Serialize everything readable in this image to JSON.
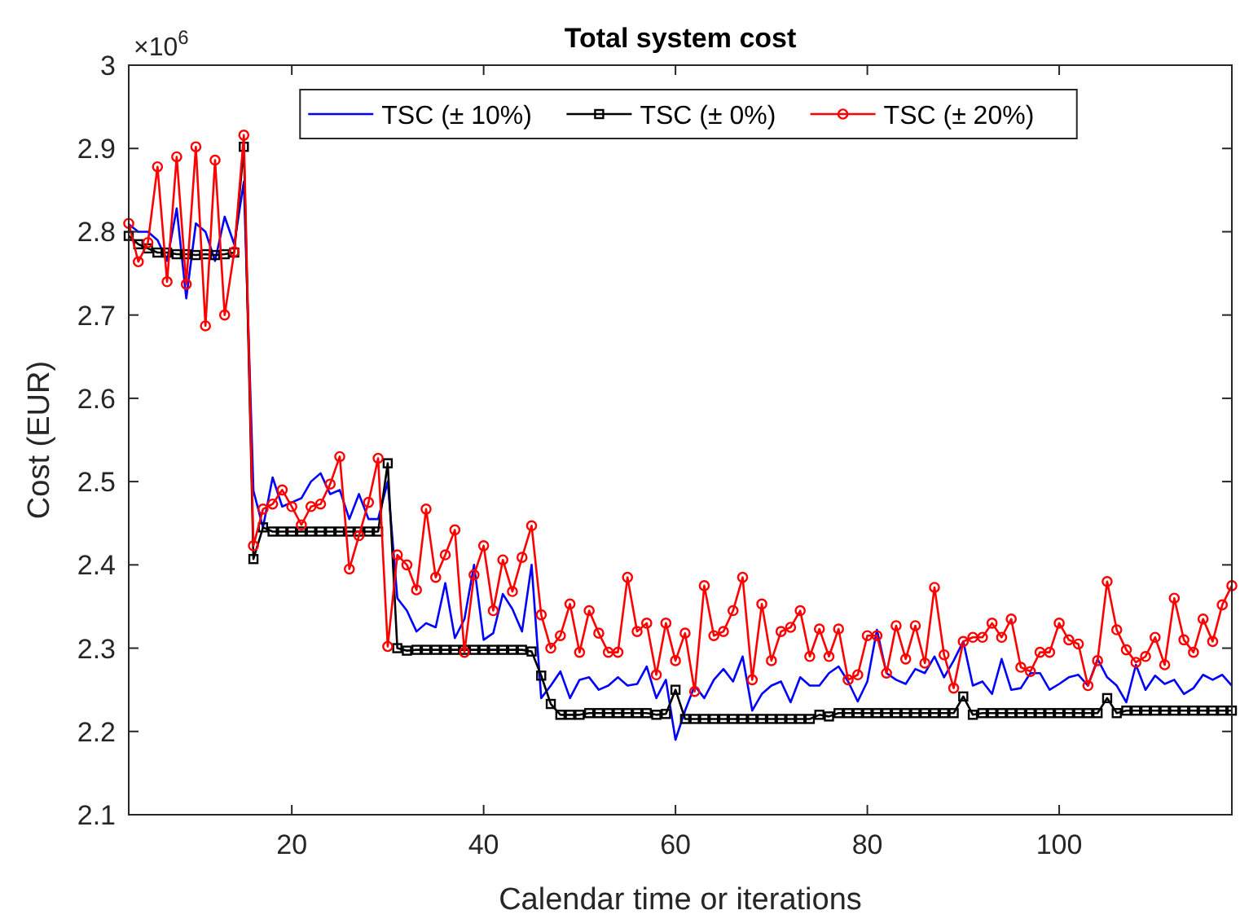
{
  "chart_data": {
    "type": "line",
    "title": "Total system cost",
    "xlabel": "Calendar time or iterations",
    "ylabel": "Cost (EUR)",
    "annotations": [
      "×10$^{6}$"
    ],
    "xlim": [
      3,
      118
    ],
    "xticks": [
      20,
      40,
      60,
      80,
      100
    ],
    "ylim": [
      2.1,
      3
    ],
    "yticks": [
      2.1,
      2.2,
      2.3,
      2.4,
      2.5,
      2.6,
      2.7,
      2.8,
      2.9,
      3
    ],
    "grid": false,
    "legend": "top",
    "x": [
      3,
      4,
      5,
      6,
      7,
      8,
      9,
      10,
      11,
      12,
      13,
      14,
      15,
      16,
      17,
      18,
      19,
      20,
      21,
      22,
      23,
      24,
      25,
      26,
      27,
      28,
      29,
      30,
      31,
      32,
      33,
      34,
      35,
      36,
      37,
      38,
      39,
      40,
      41,
      42,
      43,
      44,
      45,
      46,
      47,
      48,
      49,
      50,
      51,
      52,
      53,
      54,
      55,
      56,
      57,
      58,
      59,
      60,
      61,
      62,
      63,
      64,
      65,
      66,
      67,
      68,
      69,
      70,
      71,
      72,
      73,
      74,
      75,
      76,
      77,
      78,
      79,
      80,
      81,
      82,
      83,
      84,
      85,
      86,
      87,
      88,
      89,
      90,
      91,
      92,
      93,
      94,
      95,
      96,
      97,
      98,
      99,
      100,
      101,
      102,
      103,
      104,
      105,
      106,
      107,
      108,
      109,
      110,
      111,
      112,
      113,
      114,
      115,
      116,
      117,
      118
    ],
    "series": [
      {
        "name": "TSC (± 10%)",
        "color": "#0000ff",
        "marker": "none",
        "values": [
          2.809,
          2.8,
          2.8,
          2.79,
          2.765,
          2.828,
          2.72,
          2.81,
          2.8,
          2.765,
          2.818,
          2.785,
          2.86,
          2.489,
          2.445,
          2.505,
          2.47,
          2.475,
          2.48,
          2.5,
          2.51,
          2.485,
          2.49,
          2.455,
          2.485,
          2.455,
          2.455,
          2.5,
          2.36,
          2.345,
          2.32,
          2.33,
          2.325,
          2.378,
          2.312,
          2.335,
          2.4,
          2.31,
          2.318,
          2.365,
          2.347,
          2.32,
          2.4,
          2.24,
          2.255,
          2.272,
          2.24,
          2.262,
          2.265,
          2.25,
          2.255,
          2.265,
          2.255,
          2.257,
          2.278,
          2.24,
          2.262,
          2.19,
          2.225,
          2.255,
          2.24,
          2.262,
          2.275,
          2.26,
          2.29,
          2.225,
          2.245,
          2.255,
          2.26,
          2.235,
          2.265,
          2.255,
          2.255,
          2.27,
          2.278,
          2.26,
          2.236,
          2.26,
          2.322,
          2.27,
          2.262,
          2.257,
          2.275,
          2.27,
          2.29,
          2.265,
          2.285,
          2.308,
          2.255,
          2.26,
          2.245,
          2.287,
          2.25,
          2.252,
          2.27,
          2.27,
          2.25,
          2.257,
          2.265,
          2.268,
          2.255,
          2.287,
          2.265,
          2.255,
          2.235,
          2.28,
          2.25,
          2.267,
          2.257,
          2.262,
          2.245,
          2.252,
          2.268,
          2.262,
          2.268,
          2.255
        ]
      },
      {
        "name": "TSC (± 0%)",
        "color": "#000000",
        "marker": "square",
        "values": [
          2.795,
          2.785,
          2.78,
          2.775,
          2.775,
          2.773,
          2.773,
          2.772,
          2.773,
          2.772,
          2.773,
          2.775,
          2.902,
          2.407,
          2.445,
          2.44,
          2.44,
          2.44,
          2.44,
          2.44,
          2.44,
          2.44,
          2.44,
          2.44,
          2.44,
          2.44,
          2.44,
          2.522,
          2.3,
          2.297,
          2.298,
          2.298,
          2.298,
          2.298,
          2.298,
          2.298,
          2.298,
          2.298,
          2.298,
          2.298,
          2.298,
          2.298,
          2.296,
          2.267,
          2.233,
          2.22,
          2.22,
          2.22,
          2.222,
          2.222,
          2.222,
          2.222,
          2.222,
          2.222,
          2.222,
          2.22,
          2.221,
          2.25,
          2.215,
          2.215,
          2.215,
          2.215,
          2.215,
          2.215,
          2.215,
          2.215,
          2.215,
          2.215,
          2.215,
          2.215,
          2.215,
          2.215,
          2.22,
          2.218,
          2.222,
          2.222,
          2.222,
          2.222,
          2.222,
          2.222,
          2.222,
          2.222,
          2.222,
          2.222,
          2.222,
          2.222,
          2.222,
          2.242,
          2.22,
          2.222,
          2.222,
          2.222,
          2.222,
          2.222,
          2.222,
          2.222,
          2.222,
          2.222,
          2.222,
          2.222,
          2.222,
          2.222,
          2.24,
          2.222,
          2.225,
          2.225,
          2.225,
          2.225,
          2.225,
          2.225,
          2.225,
          2.225,
          2.225,
          2.225,
          2.225,
          2.225
        ]
      },
      {
        "name": "TSC (± 20%)",
        "color": "#ff0000",
        "marker": "circle",
        "values": [
          2.81,
          2.764,
          2.787,
          2.878,
          2.74,
          2.89,
          2.737,
          2.902,
          2.687,
          2.886,
          2.7,
          2.776,
          2.916,
          2.423,
          2.467,
          2.473,
          2.49,
          2.47,
          2.448,
          2.47,
          2.473,
          2.497,
          2.53,
          2.395,
          2.435,
          2.475,
          2.528,
          2.302,
          2.412,
          2.4,
          2.37,
          2.467,
          2.385,
          2.412,
          2.442,
          2.295,
          2.388,
          2.423,
          2.345,
          2.406,
          2.368,
          2.409,
          2.447,
          2.34,
          2.3,
          2.315,
          2.353,
          2.295,
          2.345,
          2.318,
          2.295,
          2.295,
          2.385,
          2.32,
          2.33,
          2.268,
          2.33,
          2.285,
          2.318,
          2.248,
          2.375,
          2.315,
          2.32,
          2.345,
          2.385,
          2.262,
          2.353,
          2.285,
          2.32,
          2.325,
          2.345,
          2.29,
          2.323,
          2.29,
          2.323,
          2.262,
          2.268,
          2.315,
          2.315,
          2.27,
          2.327,
          2.287,
          2.327,
          2.282,
          2.373,
          2.292,
          2.252,
          2.308,
          2.313,
          2.313,
          2.33,
          2.313,
          2.335,
          2.277,
          2.272,
          2.295,
          2.295,
          2.33,
          2.31,
          2.305,
          2.255,
          2.285,
          2.38,
          2.322,
          2.298,
          2.283,
          2.29,
          2.313,
          2.28,
          2.36,
          2.31,
          2.295,
          2.335,
          2.308,
          2.352,
          2.375
        ]
      }
    ]
  }
}
